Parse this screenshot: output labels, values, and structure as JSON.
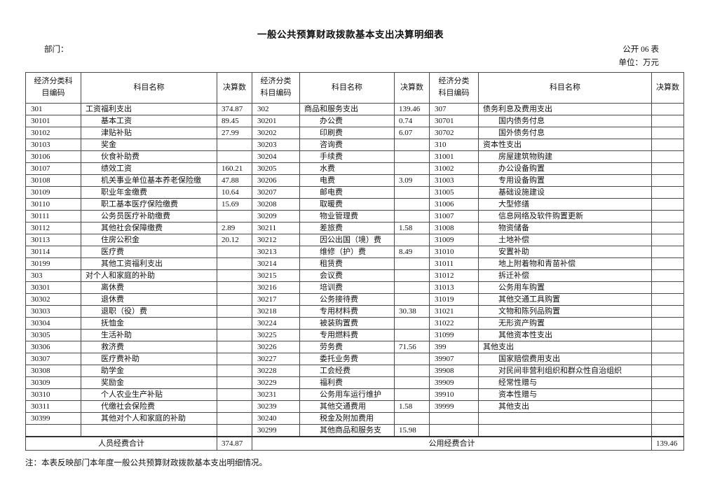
{
  "title": "一般公共预算财政拨款基本支出决算明细表",
  "department_label": "部门：",
  "table_number": "公开 06 表",
  "unit_label": "单位：万元",
  "note": "注：本表反映部门本年度一般公共预算财政拨款基本支出明细情况。",
  "table": {
    "headers": [
      "经济分类科\n目编码",
      "科目名称",
      "决算数",
      "经济分类\n科目编码",
      "科目名称",
      "决算数",
      "经济分类\n科目编码",
      "科目名称",
      "决算数"
    ],
    "rows": [
      [
        "301",
        "工资福利支出",
        "374.87",
        "302",
        "商品和服务支出",
        "139.46",
        "307",
        "债务利息及费用支出",
        ""
      ],
      [
        "30101",
        "基本工资",
        "89.45",
        "30201",
        "办公费",
        "0.74",
        "30701",
        "国内债务付息",
        ""
      ],
      [
        "30102",
        "津贴补贴",
        "27.99",
        "30202",
        "印刷费",
        "6.07",
        "30702",
        "国外债务付息",
        ""
      ],
      [
        "30103",
        "奖金",
        "",
        "30203",
        "咨询费",
        "",
        "310",
        "资本性支出",
        ""
      ],
      [
        "30106",
        "伙食补助费",
        "",
        "30204",
        "手续费",
        "",
        "31001",
        "房屋建筑物购建",
        ""
      ],
      [
        "30107",
        "绩效工资",
        "160.21",
        "30205",
        "水费",
        "",
        "31002",
        "办公设备购置",
        ""
      ],
      [
        "30108",
        "机关事业单位基本养老保险缴",
        "47.88",
        "30206",
        "电费",
        "3.09",
        "31003",
        "专用设备购置",
        ""
      ],
      [
        "30109",
        "职业年金缴费",
        "10.64",
        "30207",
        "邮电费",
        "",
        "31005",
        "基础设施建设",
        ""
      ],
      [
        "30110",
        "职工基本医疗保险缴费",
        "15.69",
        "30208",
        "取暖费",
        "",
        "31006",
        "大型修缮",
        ""
      ],
      [
        "30111",
        "公务员医疗补助缴费",
        "",
        "30209",
        "物业管理费",
        "",
        "31007",
        "信息网络及软件购置更新",
        ""
      ],
      [
        "30112",
        "其他社会保障缴费",
        "2.89",
        "30211",
        "差旅费",
        "1.58",
        "31008",
        "物资储备",
        ""
      ],
      [
        "30113",
        "住房公积金",
        "20.12",
        "30212",
        "因公出国（境）费",
        "",
        "31009",
        "土地补偿",
        ""
      ],
      [
        "30114",
        "医疗费",
        "",
        "30213",
        "维修（护）费",
        "8.49",
        "31010",
        "安置补助",
        ""
      ],
      [
        "30199",
        "其他工资福利支出",
        "",
        "30214",
        "租赁费",
        "",
        "31011",
        "地上附着物和青苗补偿",
        ""
      ],
      [
        "303",
        "对个人和家庭的补助",
        "",
        "30215",
        "会议费",
        "",
        "31012",
        "拆迁补偿",
        ""
      ],
      [
        "30301",
        "离休费",
        "",
        "30216",
        "培训费",
        "",
        "31013",
        "公务用车购置",
        ""
      ],
      [
        "30302",
        "退休费",
        "",
        "30217",
        "公务接待费",
        "",
        "31019",
        "其他交通工具购置",
        ""
      ],
      [
        "30303",
        "退职（役）费",
        "",
        "30218",
        "专用材料费",
        "30.38",
        "31021",
        "文物和陈列品购置",
        ""
      ],
      [
        "30304",
        "抚恤金",
        "",
        "30224",
        "被装购置费",
        "",
        "31022",
        "无形资产购置",
        ""
      ],
      [
        "30305",
        "生活补助",
        "",
        "30225",
        "专用燃料费",
        "",
        "31099",
        "其他资本性支出",
        ""
      ],
      [
        "30306",
        "救济费",
        "",
        "30226",
        "劳务费",
        "71.56",
        "399",
        "其他支出",
        ""
      ],
      [
        "30307",
        "医疗费补助",
        "",
        "30227",
        "委托业务费",
        "",
        "39907",
        "国家赔偿费用支出",
        ""
      ],
      [
        "30308",
        "助学金",
        "",
        "30228",
        "工会经费",
        "",
        "39908",
        "对民间非营利组织和群众性自治组织",
        ""
      ],
      [
        "30309",
        "奖励金",
        "",
        "30229",
        "福利费",
        "",
        "39909",
        "经常性赠与",
        ""
      ],
      [
        "30310",
        "个人农业生产补贴",
        "",
        "30231",
        "公务用车运行维护",
        "",
        "39910",
        "资本性赠与",
        ""
      ],
      [
        "30311",
        "代缴社会保险费",
        "",
        "30239",
        "其他交通费用",
        "1.58",
        "39999",
        "其他支出",
        ""
      ],
      [
        "30399",
        "其他对个人和家庭的补助",
        "",
        "30240",
        "税金及附加费用",
        "",
        "",
        "",
        ""
      ],
      [
        "",
        "",
        "",
        "30299",
        "其他商品和服务支",
        "15.98",
        "",
        "",
        ""
      ]
    ],
    "footer": {
      "personnel_label": "人员经费合计",
      "personnel_value": "374.87",
      "public_label": "公用经费合计",
      "public_value": "139.46"
    }
  },
  "colors": {
    "text": "#111111",
    "border": "#4a4a4a",
    "background": "#ffffff"
  }
}
